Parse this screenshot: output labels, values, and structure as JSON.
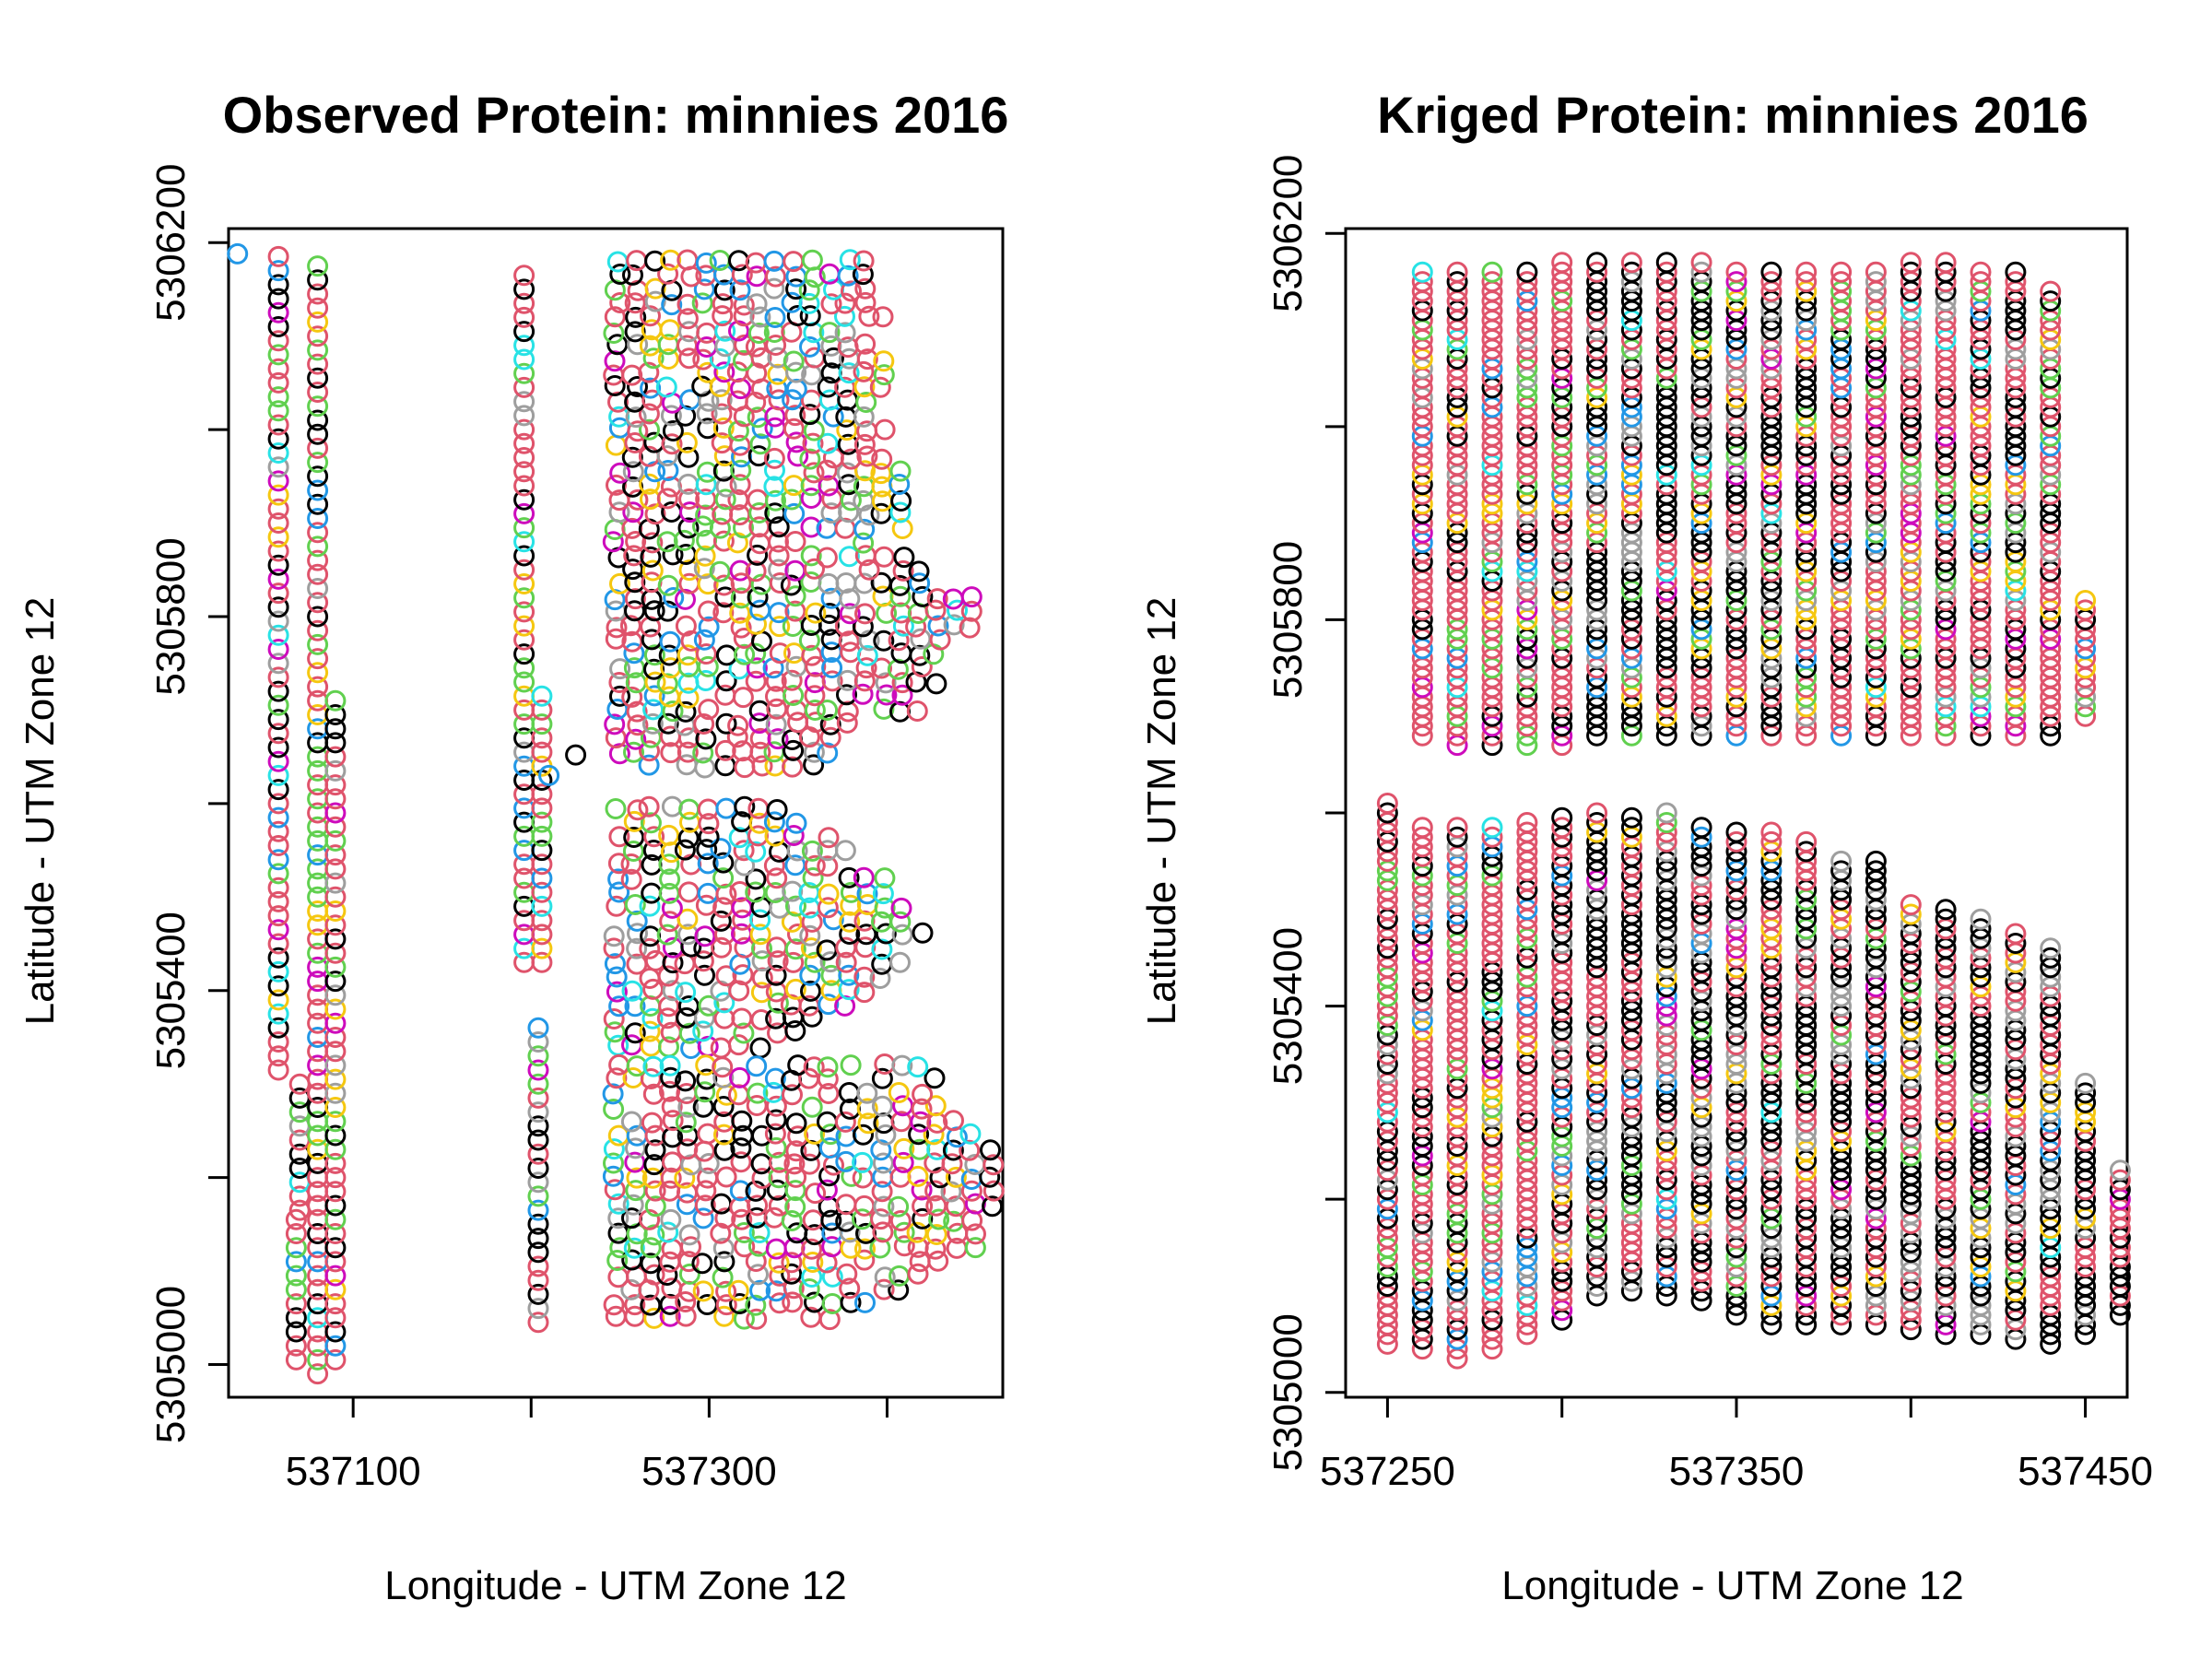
{
  "palette": [
    "#000000",
    "#DF536B",
    "#61D04F",
    "#2297E6",
    "#28E2E5",
    "#CD0BBC",
    "#F5C710",
    "#9E9E9E"
  ],
  "chart_data": [
    {
      "type": "scatter",
      "title": "Observed Protein: minnies 2016",
      "xlabel": "Longitude - UTM Zone 12",
      "ylabel": "Latitude - UTM Zone 12",
      "xlim": [
        537030,
        537465
      ],
      "ylim": [
        5304965,
        5306215
      ],
      "xticks": [
        537100,
        537200,
        537300,
        537400
      ],
      "xtick_labels": [
        "537100",
        "",
        "537300",
        ""
      ],
      "yticks": [
        5305000,
        5305200,
        5305400,
        5305600,
        5305800,
        5306000,
        5306200
      ],
      "ytick_labels": [
        "5305000",
        "",
        "5305400",
        "",
        "5305800",
        "",
        "5306200"
      ],
      "grid": false,
      "legend": "none",
      "point_columns": [
        {
          "x": 537058,
          "y_from": 5305315,
          "y_to": 5306190,
          "step": 15,
          "seed": 11
        },
        {
          "x": 537068,
          "y_from": 5305005,
          "y_to": 5305155,
          "step": 15,
          "seed": 12
        },
        {
          "x": 537070,
          "y_from": 5305165,
          "y_to": 5305310,
          "step": 15,
          "seed": 13
        },
        {
          "x": 537080,
          "y_from": 5304990,
          "y_to": 5306180,
          "step": 15,
          "seed": 14
        },
        {
          "x": 537090,
          "y_from": 5305005,
          "y_to": 5305715,
          "step": 15,
          "seed": 15
        },
        {
          "x": 537196,
          "y_from": 5305430,
          "y_to": 5306170,
          "step": 15,
          "seed": 16
        },
        {
          "x": 537206,
          "y_from": 5305430,
          "y_to": 5305720,
          "step": 15,
          "seed": 17
        },
        {
          "x": 537204,
          "y_from": 5305045,
          "y_to": 5305370,
          "step": 15,
          "seed": 18
        }
      ],
      "point_blocks": [
        {
          "x_from": 537248,
          "x_to": 537458,
          "x_step": 10,
          "y_from": 5305640,
          "y_to": 5306180,
          "y_step": 15,
          "seed": 21
        },
        {
          "x_from": 537248,
          "x_to": 537418,
          "x_step": 10,
          "y_from": 5305350,
          "y_to": 5305600,
          "y_step": 15,
          "seed": 22
        },
        {
          "x_from": 537248,
          "x_to": 537468,
          "x_step": 10,
          "y_from": 5305050,
          "y_to": 5305320,
          "y_step": 15,
          "seed": 23
        }
      ],
      "points": [
        {
          "x": 537035,
          "y": 5306188,
          "color": 3
        },
        {
          "x": 537225,
          "y": 5305652,
          "color": 0
        },
        {
          "x": 537210,
          "y": 5305630,
          "color": 3
        }
      ]
    },
    {
      "type": "scatter",
      "title": "Kriged Protein: minnies 2016",
      "xlabel": "Longitude - UTM Zone 12",
      "ylabel": "Latitude - UTM Zone 12",
      "xlim": [
        537238,
        537462
      ],
      "ylim": [
        5304995,
        5306205
      ],
      "xticks": [
        537250,
        537300,
        537350,
        537400,
        537450
      ],
      "xtick_labels": [
        "537250",
        "",
        "537350",
        "",
        "537450"
      ],
      "yticks": [
        5305000,
        5305200,
        5305400,
        5305600,
        5305800,
        5306000,
        5306200
      ],
      "ytick_labels": [
        "5305000",
        "",
        "5305400",
        "",
        "5305800",
        "",
        "5306200"
      ],
      "grid": false,
      "legend": "none",
      "kriged_columns": [
        {
          "x": 537250,
          "lower": [
            5305050,
            5305610
          ],
          "upper": null
        },
        {
          "x": 537260,
          "lower": [
            5305045,
            5305590
          ],
          "upper": [
            5305680,
            5306165
          ]
        },
        {
          "x": 537270,
          "lower": [
            5305035,
            5305590
          ],
          "upper": [
            5305670,
            5306165
          ]
        },
        {
          "x": 537280,
          "lower": [
            5305045,
            5305590
          ],
          "upper": [
            5305670,
            5306165
          ]
        },
        {
          "x": 537290,
          "lower": [
            5305060,
            5305590
          ],
          "upper": [
            5305670,
            5306165
          ]
        },
        {
          "x": 537300,
          "lower": [
            5305075,
            5305600
          ],
          "upper": [
            5305670,
            5306170
          ]
        },
        {
          "x": 537310,
          "lower": [
            5305100,
            5305600
          ],
          "upper": [
            5305680,
            5306170
          ]
        },
        {
          "x": 537320,
          "lower": [
            5305105,
            5305600
          ],
          "upper": [
            5305680,
            5306170
          ]
        },
        {
          "x": 537330,
          "lower": [
            5305100,
            5305600
          ],
          "upper": [
            5305680,
            5306170
          ]
        },
        {
          "x": 537340,
          "lower": [
            5305095,
            5305590
          ],
          "upper": [
            5305680,
            5306170
          ]
        },
        {
          "x": 537350,
          "lower": [
            5305080,
            5305580
          ],
          "upper": [
            5305680,
            5306165
          ]
        },
        {
          "x": 537360,
          "lower": [
            5305070,
            5305580
          ],
          "upper": [
            5305680,
            5306165
          ]
        },
        {
          "x": 537370,
          "lower": [
            5305070,
            5305570
          ],
          "upper": [
            5305680,
            5306165
          ]
        },
        {
          "x": 537380,
          "lower": [
            5305070,
            5305555
          ],
          "upper": [
            5305680,
            5306165
          ]
        },
        {
          "x": 537390,
          "lower": [
            5305070,
            5305550
          ],
          "upper": [
            5305680,
            5306165
          ]
        },
        {
          "x": 537400,
          "lower": [
            5305065,
            5305510
          ],
          "upper": [
            5305680,
            5306170
          ]
        },
        {
          "x": 537410,
          "lower": [
            5305060,
            5305500
          ],
          "upper": [
            5305680,
            5306170
          ]
        },
        {
          "x": 537420,
          "lower": [
            5305060,
            5305495
          ],
          "upper": [
            5305680,
            5306165
          ]
        },
        {
          "x": 537430,
          "lower": [
            5305055,
            5305480
          ],
          "upper": [
            5305680,
            5306165
          ]
        },
        {
          "x": 537440,
          "lower": [
            5305050,
            5305460
          ],
          "upper": [
            5305680,
            5306140
          ]
        },
        {
          "x": 537450,
          "lower": [
            5305060,
            5305320
          ],
          "upper": [
            5305700,
            5305820
          ]
        },
        {
          "x": 537460,
          "lower": [
            5305080,
            5305230
          ],
          "upper": null
        }
      ]
    }
  ]
}
